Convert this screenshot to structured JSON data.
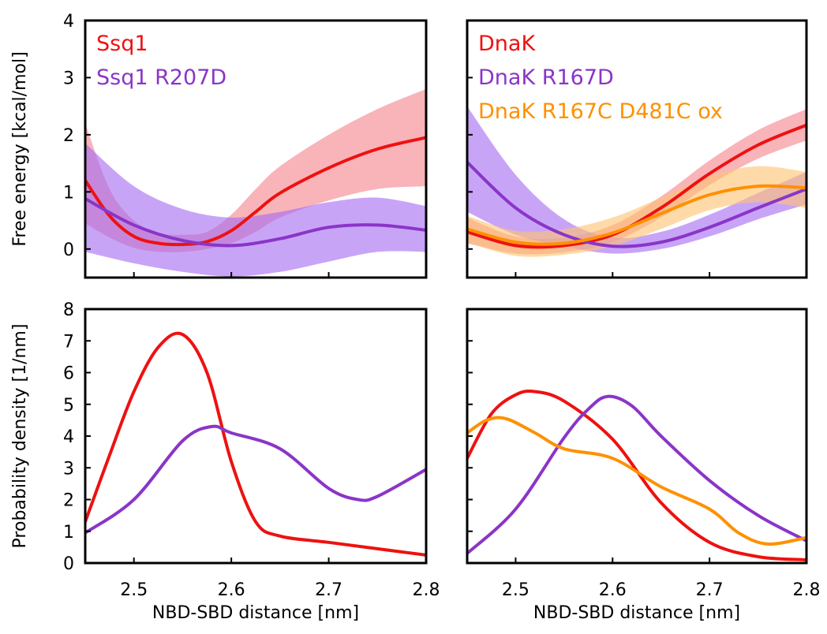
{
  "chart_data": [
    {
      "id": "ssq1_free_energy",
      "type": "line",
      "ylabel": "Free energy [kcal/mol]",
      "xlabel": "",
      "xlim": [
        2.45,
        2.8
      ],
      "ylim": [
        -0.5,
        4
      ],
      "x_ticks": [
        2.5,
        2.6,
        2.7,
        2.8
      ],
      "y_ticks": [
        0,
        1,
        2,
        3,
        4
      ],
      "y_tick_labels": [
        "0",
        "1",
        "2",
        "3",
        "4"
      ],
      "legend_placement": "top-left",
      "series": [
        {
          "name": "Ssq1",
          "color": "#ee1111",
          "band_color": "#f4868e",
          "x": [
            2.45,
            2.475,
            2.5,
            2.525,
            2.55,
            2.575,
            2.6,
            2.625,
            2.65,
            2.7,
            2.75,
            2.8
          ],
          "y": [
            1.2,
            0.58,
            0.22,
            0.1,
            0.08,
            0.13,
            0.32,
            0.65,
            0.98,
            1.42,
            1.75,
            1.95
          ],
          "lo": [
            0.45,
            0.2,
            0.02,
            -0.05,
            -0.05,
            0.0,
            0.1,
            0.3,
            0.55,
            0.85,
            1.05,
            1.1
          ],
          "hi": [
            2.2,
            1.05,
            0.5,
            0.28,
            0.25,
            0.3,
            0.6,
            1.05,
            1.45,
            2.0,
            2.45,
            2.8
          ]
        },
        {
          "name": "Ssq1 R207D",
          "color": "#8a35c8",
          "band_color": "#a66cf2",
          "x": [
            2.45,
            2.5,
            2.55,
            2.6,
            2.65,
            2.7,
            2.75,
            2.8
          ],
          "y": [
            0.88,
            0.42,
            0.15,
            0.06,
            0.18,
            0.38,
            0.42,
            0.33
          ],
          "lo": [
            -0.05,
            -0.25,
            -0.4,
            -0.48,
            -0.4,
            -0.22,
            -0.05,
            -0.05
          ],
          "hi": [
            1.85,
            1.1,
            0.7,
            0.55,
            0.65,
            0.82,
            0.9,
            0.75
          ]
        }
      ]
    },
    {
      "id": "dnak_free_energy",
      "type": "line",
      "xlim": [
        2.45,
        2.8
      ],
      "ylim": [
        -0.5,
        4
      ],
      "x_ticks": [
        2.5,
        2.6,
        2.7,
        2.8
      ],
      "y_ticks": [
        0,
        1,
        2,
        3,
        4
      ],
      "legend_placement": "top-left",
      "series": [
        {
          "name": "DnaK",
          "color": "#ee1111",
          "band_color": "#f4868e",
          "x": [
            2.45,
            2.5,
            2.55,
            2.6,
            2.65,
            2.7,
            2.75,
            2.8
          ],
          "y": [
            0.3,
            0.06,
            0.06,
            0.25,
            0.72,
            1.32,
            1.82,
            2.17
          ],
          "lo": [
            0.1,
            -0.08,
            -0.06,
            0.12,
            0.55,
            1.12,
            1.58,
            1.9
          ],
          "hi": [
            0.55,
            0.22,
            0.2,
            0.42,
            0.92,
            1.55,
            2.08,
            2.45
          ]
        },
        {
          "name": "DnaK R167D",
          "color": "#8a35c8",
          "band_color": "#a66cf2",
          "x": [
            2.45,
            2.5,
            2.55,
            2.6,
            2.65,
            2.7,
            2.75,
            2.8
          ],
          "y": [
            1.52,
            0.72,
            0.25,
            0.05,
            0.12,
            0.38,
            0.72,
            1.05
          ],
          "lo": [
            0.65,
            0.25,
            0.05,
            -0.08,
            0.0,
            0.22,
            0.52,
            0.78
          ],
          "hi": [
            2.5,
            1.3,
            0.52,
            0.2,
            0.3,
            0.6,
            0.98,
            1.35
          ]
        },
        {
          "name": "DnaK R167C D481C ox",
          "color": "#ff9000",
          "band_color": "#ffc374",
          "x": [
            2.45,
            2.5,
            2.55,
            2.6,
            2.65,
            2.7,
            2.75,
            2.8
          ],
          "y": [
            0.35,
            0.12,
            0.1,
            0.28,
            0.62,
            0.95,
            1.1,
            1.07
          ],
          "lo": [
            0.12,
            -0.12,
            -0.1,
            0.05,
            0.35,
            0.68,
            0.82,
            0.72
          ],
          "hi": [
            0.58,
            0.32,
            0.35,
            0.55,
            0.9,
            1.28,
            1.45,
            1.35
          ]
        }
      ]
    },
    {
      "id": "ssq1_probability",
      "type": "line",
      "ylabel": "Probability density [1/nm]",
      "xlabel": "NBD-SBD distance [nm]",
      "xlim": [
        2.45,
        2.8
      ],
      "ylim": [
        0,
        8
      ],
      "x_ticks": [
        2.5,
        2.6,
        2.7,
        2.8
      ],
      "x_tick_labels": [
        "2.5",
        "2.6",
        "2.7",
        "2.8"
      ],
      "y_ticks": [
        0,
        1,
        2,
        3,
        4,
        5,
        6,
        7,
        8
      ],
      "y_tick_labels": [
        "0",
        "1",
        "2",
        "3",
        "4",
        "5",
        "6",
        "7",
        "8"
      ],
      "series": [
        {
          "name": "Ssq1",
          "color": "#ee1111",
          "x": [
            2.45,
            2.475,
            2.5,
            2.525,
            2.55,
            2.575,
            2.6,
            2.625,
            2.65,
            2.7,
            2.75,
            2.8
          ],
          "y": [
            1.3,
            3.4,
            5.4,
            6.8,
            7.2,
            6.0,
            3.2,
            1.3,
            0.85,
            0.65,
            0.45,
            0.25
          ]
        },
        {
          "name": "Ssq1 R207D",
          "color": "#8a35c8",
          "x": [
            2.45,
            2.5,
            2.55,
            2.58,
            2.6,
            2.65,
            2.7,
            2.73,
            2.75,
            2.8
          ],
          "y": [
            0.95,
            2.0,
            3.85,
            4.3,
            4.1,
            3.6,
            2.35,
            2.0,
            2.1,
            2.95
          ]
        }
      ]
    },
    {
      "id": "dnak_probability",
      "type": "line",
      "xlabel": "NBD-SBD distance [nm]",
      "xlim": [
        2.45,
        2.8
      ],
      "ylim": [
        0,
        8
      ],
      "x_ticks": [
        2.5,
        2.6,
        2.7,
        2.8
      ],
      "x_tick_labels": [
        "2.5",
        "2.6",
        "2.7",
        "2.8"
      ],
      "y_ticks": [
        0,
        1,
        2,
        3,
        4,
        5,
        6,
        7,
        8
      ],
      "series": [
        {
          "name": "DnaK",
          "color": "#ee1111",
          "x": [
            2.45,
            2.475,
            2.5,
            2.52,
            2.55,
            2.6,
            2.65,
            2.7,
            2.75,
            2.8
          ],
          "y": [
            3.3,
            4.7,
            5.3,
            5.4,
            5.1,
            3.9,
            1.9,
            0.65,
            0.2,
            0.1
          ]
        },
        {
          "name": "DnaK R167D",
          "color": "#8a35c8",
          "x": [
            2.45,
            2.5,
            2.55,
            2.575,
            2.595,
            2.62,
            2.65,
            2.7,
            2.75,
            2.8
          ],
          "y": [
            0.3,
            1.7,
            3.95,
            4.85,
            5.25,
            4.95,
            4.0,
            2.6,
            1.5,
            0.7
          ]
        },
        {
          "name": "DnaK R167C D481C ox",
          "color": "#ff9000",
          "x": [
            2.45,
            2.47,
            2.49,
            2.52,
            2.55,
            2.6,
            2.65,
            2.7,
            2.73,
            2.76,
            2.8
          ],
          "y": [
            4.1,
            4.5,
            4.55,
            4.1,
            3.6,
            3.3,
            2.4,
            1.7,
            0.95,
            0.6,
            0.8
          ]
        }
      ]
    }
  ]
}
